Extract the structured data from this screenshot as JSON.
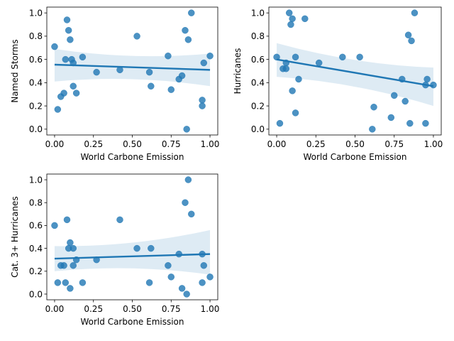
{
  "chart_data": [
    {
      "type": "scatter",
      "xlabel": "World Carbone Emission",
      "ylabel": "Named Storms",
      "xlim": [
        -0.05,
        1.05
      ],
      "ylim": [
        -0.05,
        1.05
      ],
      "xticks": [
        "0.00",
        "0.25",
        "0.50",
        "0.75",
        "1.00"
      ],
      "yticks": [
        "0.0",
        "0.2",
        "0.4",
        "0.6",
        "0.8",
        "1.0"
      ],
      "x": [
        0.0,
        0.02,
        0.04,
        0.06,
        0.07,
        0.08,
        0.09,
        0.1,
        0.11,
        0.12,
        0.12,
        0.14,
        0.18,
        0.27,
        0.42,
        0.53,
        0.61,
        0.62,
        0.73,
        0.75,
        0.8,
        0.82,
        0.84,
        0.85,
        0.86,
        0.88,
        0.95,
        0.95,
        0.96,
        1.0
      ],
      "y": [
        0.71,
        0.17,
        0.28,
        0.31,
        0.6,
        0.94,
        0.85,
        0.77,
        0.6,
        0.57,
        0.37,
        0.31,
        0.62,
        0.49,
        0.51,
        0.8,
        0.49,
        0.37,
        0.63,
        0.34,
        0.43,
        0.46,
        0.85,
        0.0,
        0.77,
        1.0,
        0.25,
        0.2,
        0.57,
        0.63
      ],
      "regression": {
        "x": [
          0.0,
          1.0
        ],
        "y": [
          0.555,
          0.51
        ],
        "ci_low": [
          0.41,
          0.37
        ],
        "ci_mid": 0.49,
        "ci_mid_x": 0.5,
        "ci_high": [
          0.69,
          0.65
        ]
      }
    },
    {
      "type": "scatter",
      "xlabel": "World Carbone Emission",
      "ylabel": "Hurricanes",
      "xlim": [
        -0.05,
        1.05
      ],
      "ylim": [
        -0.05,
        1.05
      ],
      "xticks": [
        "0.00",
        "0.25",
        "0.50",
        "0.75",
        "1.00"
      ],
      "yticks": [
        "0.0",
        "0.2",
        "0.4",
        "0.6",
        "0.8",
        "1.0"
      ],
      "x": [
        0.0,
        0.02,
        0.04,
        0.06,
        0.06,
        0.08,
        0.09,
        0.1,
        0.1,
        0.12,
        0.12,
        0.14,
        0.18,
        0.27,
        0.42,
        0.53,
        0.61,
        0.62,
        0.73,
        0.75,
        0.8,
        0.82,
        0.84,
        0.85,
        0.86,
        0.88,
        0.95,
        0.95,
        0.96,
        1.0
      ],
      "y": [
        0.62,
        0.05,
        0.52,
        0.52,
        0.57,
        1.0,
        0.9,
        0.95,
        0.33,
        0.62,
        0.14,
        0.43,
        0.95,
        0.57,
        0.62,
        0.62,
        0.0,
        0.19,
        0.1,
        0.29,
        0.43,
        0.24,
        0.81,
        0.05,
        0.76,
        1.0,
        0.05,
        0.38,
        0.43,
        0.38
      ],
      "regression": {
        "x": [
          0.0,
          1.0
        ],
        "y": [
          0.6,
          0.37
        ],
        "ci_low": [
          0.45,
          0.2
        ],
        "ci_mid": 0.43,
        "ci_mid_x": 0.5,
        "ci_high": [
          0.74,
          0.53
        ]
      }
    },
    {
      "type": "scatter",
      "xlabel": "World Carbone Emission",
      "ylabel": "Cat. 3+ Hurricanes",
      "xlim": [
        -0.05,
        1.05
      ],
      "ylim": [
        -0.05,
        1.05
      ],
      "xticks": [
        "0.00",
        "0.25",
        "0.50",
        "0.75",
        "1.00"
      ],
      "yticks": [
        "0.0",
        "0.2",
        "0.4",
        "0.6",
        "0.8",
        "1.0"
      ],
      "x": [
        0.0,
        0.02,
        0.04,
        0.06,
        0.07,
        0.08,
        0.09,
        0.1,
        0.1,
        0.12,
        0.12,
        0.14,
        0.18,
        0.27,
        0.42,
        0.53,
        0.61,
        0.62,
        0.73,
        0.75,
        0.8,
        0.82,
        0.84,
        0.85,
        0.86,
        0.88,
        0.95,
        0.95,
        0.96,
        1.0
      ],
      "y": [
        0.6,
        0.1,
        0.25,
        0.25,
        0.1,
        0.65,
        0.4,
        0.45,
        0.05,
        0.4,
        0.25,
        0.3,
        0.1,
        0.3,
        0.65,
        0.4,
        0.1,
        0.4,
        0.25,
        0.15,
        0.35,
        0.05,
        0.8,
        0.0,
        1.0,
        0.7,
        0.35,
        0.1,
        0.25,
        0.15
      ],
      "regression": {
        "x": [
          0.0,
          1.0
        ],
        "y": [
          0.31,
          0.35
        ],
        "ci_low": [
          0.2,
          0.17
        ],
        "ci_mid": 0.33,
        "ci_mid_x": 0.5,
        "ci_high": [
          0.42,
          0.56
        ]
      }
    }
  ]
}
